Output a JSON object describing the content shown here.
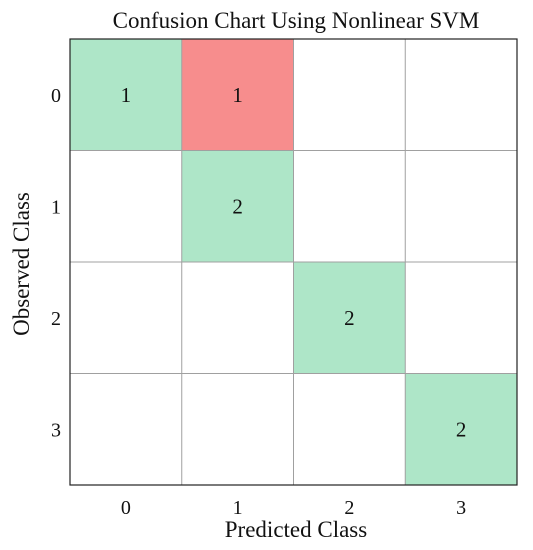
{
  "chart_data": {
    "type": "heatmap",
    "title": "Confusion Chart Using Nonlinear SVM",
    "xlabel": "Predicted Class",
    "ylabel": "Observed Class",
    "x_categories": [
      "0",
      "1",
      "2",
      "3"
    ],
    "y_categories": [
      "0",
      "1",
      "2",
      "3"
    ],
    "values": [
      [
        1,
        1,
        0,
        0
      ],
      [
        0,
        2,
        0,
        0
      ],
      [
        0,
        0,
        2,
        0
      ],
      [
        0,
        0,
        0,
        2
      ]
    ],
    "grid": true,
    "colors": {
      "correct": "#aee6c8",
      "incorrect": "#f78d8d",
      "empty": "#ffffff",
      "gridline": "#a0a0a0",
      "frame": "#222222"
    }
  }
}
